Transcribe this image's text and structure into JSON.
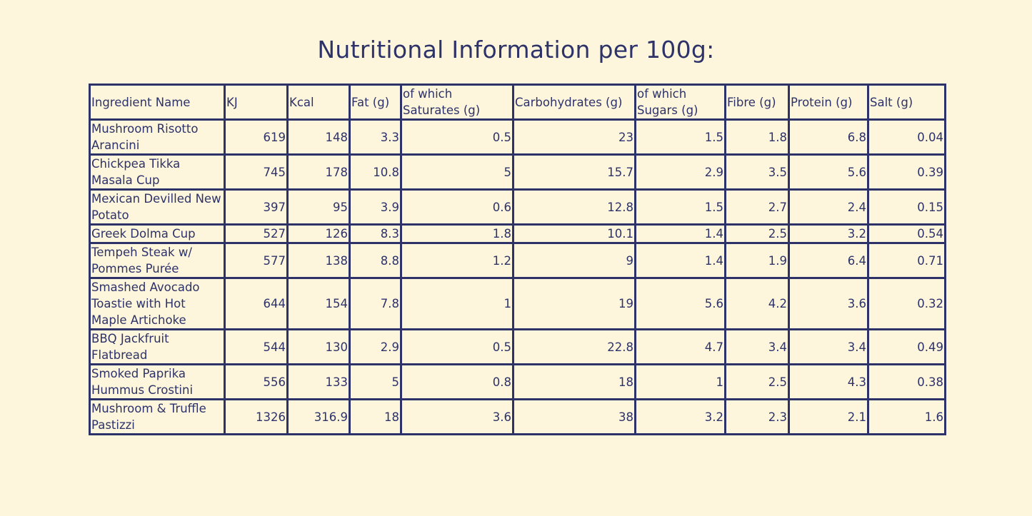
{
  "title": "Nutritional Information per 100g:",
  "table": {
    "headers": [
      "Ingredient Name",
      "KJ",
      "Kcal",
      "Fat (g)",
      "of which Saturates (g)",
      "Carbohydrates (g)",
      "of which Sugars (g)",
      "Fibre (g)",
      "Protein (g)",
      "Salt (g)"
    ],
    "rows": [
      [
        "Mushroom Risotto Arancini",
        "619",
        "148",
        "3.3",
        "0.5",
        "23",
        "1.5",
        "1.8",
        "6.8",
        "0.04"
      ],
      [
        "Chickpea Tikka Masala Cup",
        "745",
        "178",
        "10.8",
        "5",
        "15.7",
        "2.9",
        "3.5",
        "5.6",
        "0.39"
      ],
      [
        "Mexican Devilled New Potato",
        "397",
        "95",
        "3.9",
        "0.6",
        "12.8",
        "1.5",
        "2.7",
        "2.4",
        "0.15"
      ],
      [
        "Greek Dolma Cup",
        "527",
        "126",
        "8.3",
        "1.8",
        "10.1",
        "1.4",
        "2.5",
        "3.2",
        "0.54"
      ],
      [
        "Tempeh Steak w/ Pommes Purée",
        "577",
        "138",
        "8.8",
        "1.2",
        "9",
        "1.4",
        "1.9",
        "6.4",
        "0.71"
      ],
      [
        "Smashed Avocado Toastie with Hot Maple Artichoke",
        "644",
        "154",
        "7.8",
        "1",
        "19",
        "5.6",
        "4.2",
        "3.6",
        "0.32"
      ],
      [
        "BBQ Jackfruit Flatbread",
        "544",
        "130",
        "2.9",
        "0.5",
        "22.8",
        "4.7",
        "3.4",
        "3.4",
        "0.49"
      ],
      [
        "Smoked Paprika Hummus Crostini",
        "556",
        "133",
        "5",
        "0.8",
        "18",
        "1",
        "2.5",
        "4.3",
        "0.38"
      ],
      [
        "Mushroom & Truffle Pastizzi",
        "1326",
        "316.9",
        "18",
        "3.6",
        "38",
        "3.2",
        "2.3",
        "2.1",
        "1.6"
      ]
    ]
  },
  "colors": {
    "background": "#fdf6dd",
    "ink": "#2d3269"
  }
}
